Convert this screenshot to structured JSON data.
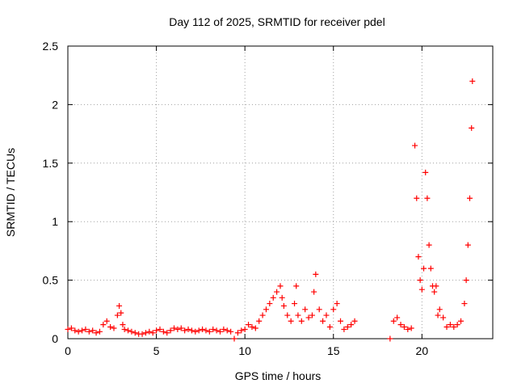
{
  "chart_data": {
    "type": "scatter",
    "title": "Day 112 of 2025, SRMTID for receiver pdel",
    "xlabel": "GPS time / hours",
    "ylabel": "SRMTID / TECUs",
    "xlim": [
      0,
      24
    ],
    "ylim": [
      0,
      2.5
    ],
    "x_ticks": [
      0,
      5,
      10,
      15,
      20
    ],
    "x_tick_labels": [
      "0",
      "5",
      "10",
      "15",
      "20"
    ],
    "y_ticks": [
      0,
      0.5,
      1,
      1.5,
      2,
      2.5
    ],
    "y_tick_labels": [
      "0",
      "0.5",
      "1",
      "1.5",
      "2",
      "2.5"
    ],
    "grid": true,
    "marker": "plus",
    "series": [
      {
        "name": "SRMTID",
        "color": "#ff0000",
        "x": [
          0.0,
          0.2,
          0.4,
          0.6,
          0.8,
          1.0,
          1.2,
          1.4,
          1.6,
          1.8,
          2.0,
          2.2,
          2.4,
          2.6,
          2.8,
          2.9,
          3.0,
          3.1,
          3.2,
          3.4,
          3.6,
          3.8,
          4.0,
          4.2,
          4.4,
          4.6,
          4.8,
          5.0,
          5.2,
          5.4,
          5.6,
          5.8,
          6.0,
          6.2,
          6.4,
          6.6,
          6.8,
          7.0,
          7.2,
          7.4,
          7.6,
          7.8,
          8.0,
          8.2,
          8.4,
          8.6,
          8.8,
          9.0,
          9.2,
          9.4,
          9.6,
          9.8,
          10.0,
          10.2,
          10.4,
          10.6,
          10.8,
          11.0,
          11.2,
          11.4,
          11.6,
          11.8,
          12.0,
          12.1,
          12.2,
          12.4,
          12.6,
          12.8,
          12.9,
          13.0,
          13.2,
          13.4,
          13.6,
          13.8,
          13.9,
          14.0,
          14.2,
          14.4,
          14.6,
          14.8,
          15.0,
          15.2,
          15.4,
          15.6,
          15.8,
          16.0,
          16.2,
          18.2,
          18.4,
          18.6,
          18.8,
          19.0,
          19.2,
          19.4,
          19.6,
          19.7,
          19.8,
          19.9,
          20.0,
          20.1,
          20.2,
          20.3,
          20.4,
          20.5,
          20.6,
          20.7,
          20.8,
          20.9,
          21.0,
          21.2,
          21.4,
          21.6,
          21.8,
          22.0,
          22.2,
          22.4,
          22.5,
          22.6,
          22.7,
          22.8,
          22.85
        ],
        "y": [
          0.08,
          0.09,
          0.07,
          0.06,
          0.07,
          0.08,
          0.06,
          0.07,
          0.05,
          0.06,
          0.12,
          0.15,
          0.1,
          0.09,
          0.2,
          0.28,
          0.22,
          0.12,
          0.08,
          0.07,
          0.06,
          0.05,
          0.04,
          0.04,
          0.05,
          0.06,
          0.05,
          0.07,
          0.08,
          0.06,
          0.05,
          0.07,
          0.09,
          0.08,
          0.09,
          0.07,
          0.08,
          0.07,
          0.06,
          0.07,
          0.08,
          0.07,
          0.06,
          0.08,
          0.07,
          0.06,
          0.08,
          0.07,
          0.06,
          0.0,
          0.05,
          0.07,
          0.08,
          0.12,
          0.1,
          0.09,
          0.15,
          0.2,
          0.25,
          0.3,
          0.35,
          0.4,
          0.45,
          0.35,
          0.28,
          0.2,
          0.15,
          0.3,
          0.45,
          0.2,
          0.15,
          0.25,
          0.18,
          0.2,
          0.4,
          0.55,
          0.25,
          0.15,
          0.2,
          0.1,
          0.25,
          0.3,
          0.15,
          0.08,
          0.1,
          0.12,
          0.15,
          0.0,
          0.15,
          0.18,
          0.12,
          0.1,
          0.08,
          0.09,
          1.65,
          1.2,
          0.7,
          0.5,
          0.42,
          0.6,
          1.42,
          1.2,
          0.8,
          0.6,
          0.45,
          0.4,
          0.45,
          0.2,
          0.25,
          0.18,
          0.1,
          0.12,
          0.1,
          0.12,
          0.15,
          0.3,
          0.5,
          0.8,
          1.2,
          1.8,
          2.2
        ]
      }
    ]
  }
}
